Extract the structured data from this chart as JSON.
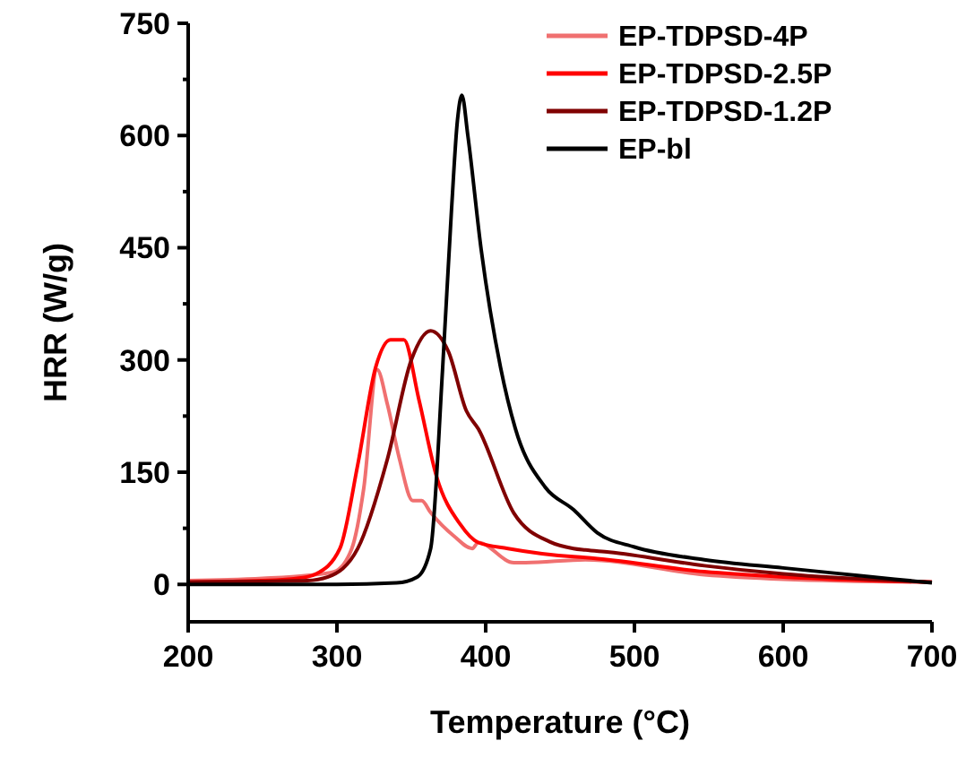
{
  "chart_data": {
    "type": "line",
    "xlabel": "Temperature (°C)",
    "ylabel": "HRR (W/g)",
    "xlim": [
      200,
      700
    ],
    "ylim": [
      -50,
      750
    ],
    "xticks": [
      200,
      300,
      400,
      500,
      600,
      700
    ],
    "yticks": [
      0,
      {
        "value": 75,
        "label": null
      },
      150,
      {
        "value": 225,
        "label": null
      },
      300,
      {
        "value": 375,
        "label": null
      },
      450,
      {
        "value": 525,
        "label": null
      },
      600,
      {
        "value": 675,
        "label": null
      },
      750
    ],
    "legend": "top right",
    "grid": false,
    "line_style": "solid",
    "marker": "none",
    "series": [
      {
        "name": "EP-TDPSD-4P",
        "color": "#f07070",
        "x": [
          200,
          250,
          280,
          298,
          310,
          318,
          327,
          334,
          342,
          351,
          357,
          363,
          379,
          391,
          395,
          419,
          427,
          467,
          547,
          600,
          700
        ],
        "values": [
          5,
          8,
          12,
          17,
          48,
          128,
          287,
          240,
          168,
          112,
          112,
          96,
          64,
          48,
          56,
          29,
          29,
          33,
          13,
          7,
          3
        ]
      },
      {
        "name": "EP-TDPSD-2.5P",
        "color": "#ff0000",
        "x": [
          200,
          250,
          280,
          286,
          302,
          314,
          326,
          336,
          345,
          355,
          367,
          383,
          395,
          415,
          459,
          467,
          547,
          600,
          700
        ],
        "values": [
          3,
          5,
          10,
          14,
          48,
          160,
          290,
          327,
          327,
          248,
          144,
          80,
          56,
          48,
          37,
          36,
          17,
          10,
          3
        ]
      },
      {
        "name": "EP-TDPSD-1.2P",
        "color": "#800000",
        "x": [
          200,
          250,
          280,
          294,
          314,
          334,
          350,
          363,
          375,
          387,
          395,
          419,
          443,
          459,
          467,
          483,
          547,
          600,
          700
        ],
        "values": [
          3,
          4,
          5,
          10,
          48,
          168,
          300,
          339,
          311,
          232,
          208,
          95,
          57,
          48,
          46,
          43,
          25,
          14,
          3
        ]
      },
      {
        "name": "EP-bl",
        "color": "#000000",
        "x": [
          200,
          300,
          340,
          354,
          363,
          371,
          377,
          381,
          384,
          388,
          397,
          410,
          420,
          440,
          459,
          475,
          500,
          547,
          600,
          650,
          700
        ],
        "values": [
          0,
          0,
          2,
          10,
          48,
          287,
          500,
          620,
          654,
          600,
          447,
          290,
          208,
          130,
          100,
          69,
          50,
          33,
          22,
          12,
          2
        ]
      }
    ]
  }
}
